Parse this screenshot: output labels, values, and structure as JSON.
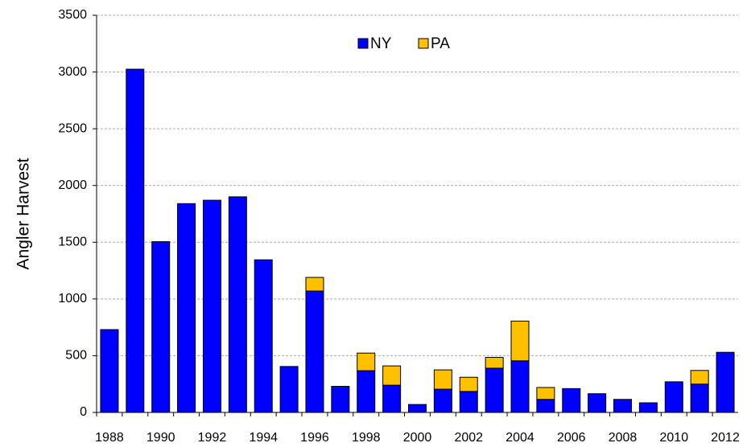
{
  "chart_data": {
    "type": "stacked-bar",
    "y_label": "Angler Harvest",
    "categories": [
      "1988",
      null,
      "1990",
      null,
      "1992",
      null,
      "1994",
      null,
      "1996",
      null,
      "1998",
      null,
      "2000",
      null,
      "2002",
      null,
      "2004",
      null,
      "2006",
      null,
      "2008",
      null,
      "2010",
      null,
      "2012"
    ],
    "series": [
      {
        "name": "NY",
        "color": "#0000ff",
        "values": [
          730,
          3025,
          1505,
          1840,
          1870,
          1900,
          1345,
          405,
          1070,
          230,
          368,
          240,
          70,
          205,
          185,
          390,
          455,
          115,
          210,
          165,
          115,
          85,
          270,
          250,
          530
        ]
      },
      {
        "name": "PA",
        "color": "#ffc000",
        "values": [
          null,
          null,
          null,
          null,
          null,
          null,
          null,
          null,
          120,
          null,
          155,
          170,
          null,
          170,
          125,
          95,
          350,
          105,
          null,
          null,
          null,
          null,
          null,
          120,
          null
        ]
      }
    ],
    "ylim": [
      0,
      3500
    ],
    "yticks": [
      0,
      500,
      1000,
      1500,
      2000,
      2500,
      3000,
      3500
    ],
    "grid": true,
    "legend": "top"
  }
}
